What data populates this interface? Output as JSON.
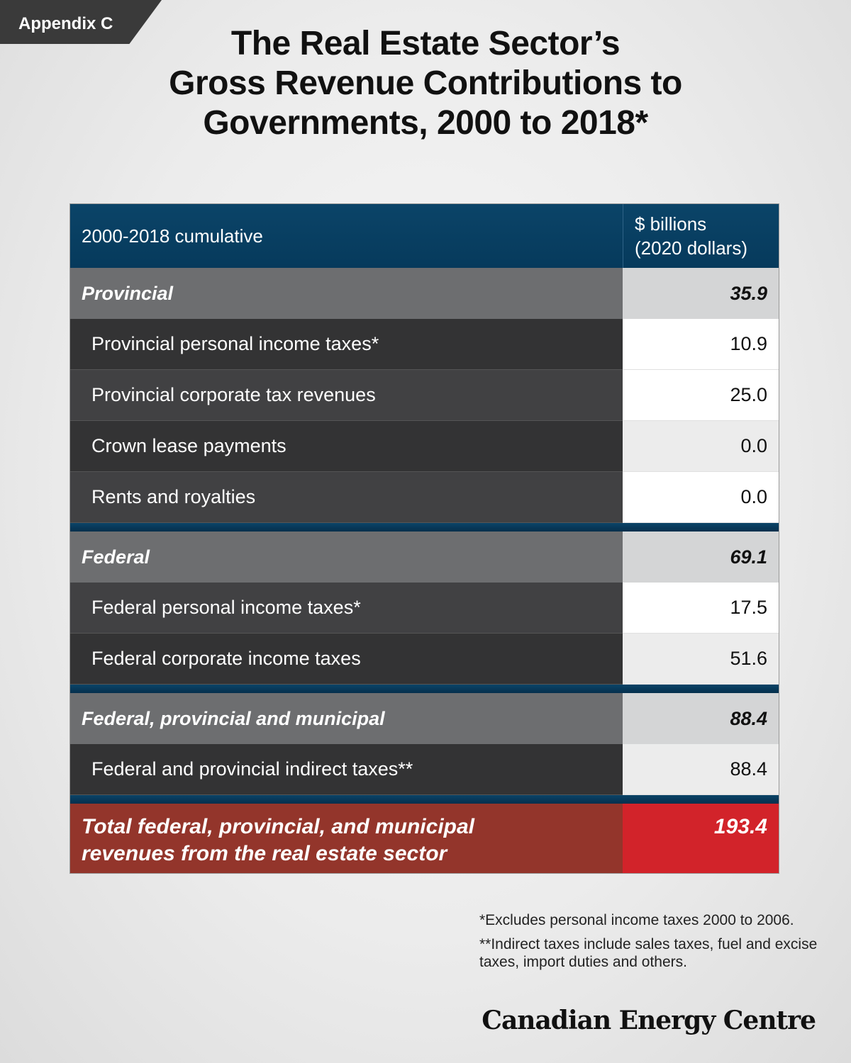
{
  "tag": "Appendix C",
  "title_lines": [
    "The Real Estate Sector’s",
    "Gross Revenue Contributions to",
    "Governments, 2000 to 2018*"
  ],
  "chart_data": {
    "type": "table",
    "header": {
      "label": "2000-2018 cumulative",
      "value_line1": "$ billions",
      "value_line2": "(2020 dollars)"
    },
    "sections": [
      {
        "label": "Provincial",
        "value": "35.9",
        "items": [
          {
            "label": "Provincial personal income taxes*",
            "value": "10.9"
          },
          {
            "label": "Provincial corporate tax revenues",
            "value": "25.0"
          },
          {
            "label": "Crown lease payments",
            "value": "0.0"
          },
          {
            "label": "Rents and royalties",
            "value": "0.0"
          }
        ]
      },
      {
        "label": "Federal",
        "value": "69.1",
        "items": [
          {
            "label": "Federal personal income taxes*",
            "value": "17.5"
          },
          {
            "label": "Federal corporate income taxes",
            "value": "51.6"
          }
        ]
      },
      {
        "label": "Federal, provincial and municipal",
        "value": "88.4",
        "items": [
          {
            "label": "Federal and provincial indirect taxes**",
            "value": "88.4"
          }
        ]
      }
    ],
    "total": {
      "label_line1": "Total federal, provincial, and municipal",
      "label_line2": "revenues from the real estate sector",
      "value": "193.4"
    }
  },
  "notes": [
    "*Excludes personal income taxes 2000 to 2006.",
    "**Indirect taxes include sales taxes, fuel and excise taxes, import duties and others."
  ],
  "logo": "Canadian Energy Centre",
  "colors": {
    "header_blue": "#0b4468",
    "section_gray": "#6d6e70",
    "row_dark": "#333334",
    "total_dark_red": "#93352b",
    "total_red": "#d2232a"
  }
}
